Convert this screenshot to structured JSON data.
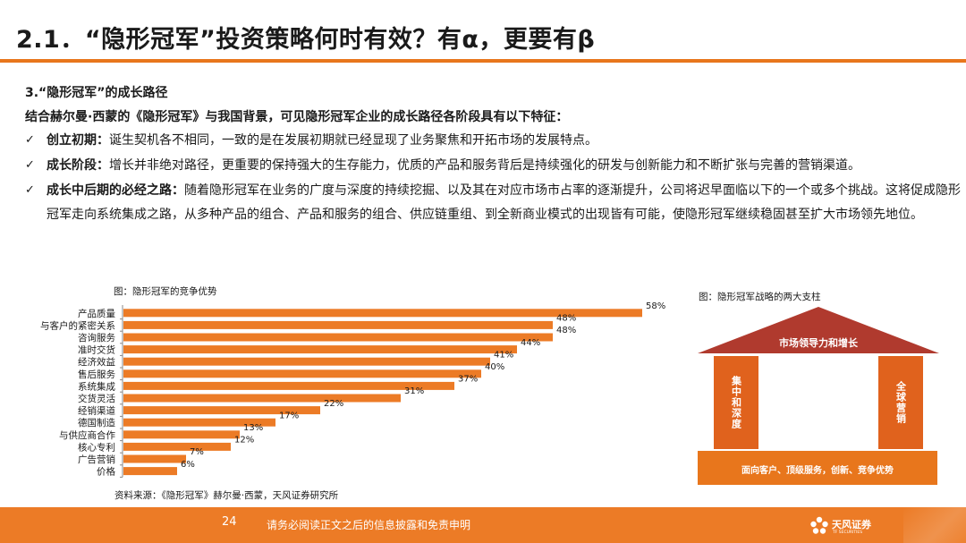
{
  "slide": {
    "title": "2.1．“隐形冠军”投资策略何时有效？有α，更要有β"
  },
  "content": {
    "section_heading": "3.“隐形冠军”的成长路径",
    "intro": "结合赫尔曼·西蒙的《隐形冠军》与我国背景，可见隐形冠军企业的成长路径各阶段具有以下特征：",
    "check_glyph": "✓",
    "bullets": [
      {
        "head": "创立初期：",
        "text": "诞生契机各不相同，一致的是在发展初期就已经显现了业务聚焦和开拓市场的发展特点。"
      },
      {
        "head": "成长阶段：",
        "text": "增长并非绝对路径，更重要的保持强大的生存能力，优质的产品和服务背后是持续强化的研发与创新能力和不断扩张与完善的营销渠道。"
      },
      {
        "head": "成长中后期的必经之路：",
        "text": "随着隐形冠军在业务的广度与深度的持续挖掘、以及其在对应市场市占率的逐渐提升，公司将迟早面临以下的一个或多个挑战。这将促成隐形冠军走向系统集成之路，从多种产品的组合、产品和服务的组合、供应链重组、到全新商业模式的出现皆有可能，使隐形冠军继续稳固甚至扩大市场领先地位。"
      }
    ]
  },
  "chart_caption": "图：隐形冠军的竞争优势",
  "chart_source": "资料来源：《隐形冠军》赫尔曼·西蒙，天风证券研究所",
  "chart_data": {
    "type": "bar",
    "orientation": "horizontal",
    "categories": [
      "产品质量",
      "与客户的紧密关系",
      "咨询服务",
      "准时交货",
      "经济效益",
      "售后服务",
      "系统集成",
      "交货灵活",
      "经销渠道",
      "德国制造",
      "与供应商合作",
      "核心专利",
      "广告营销",
      "价格"
    ],
    "values": [
      58,
      48,
      48,
      44,
      41,
      40,
      37,
      31,
      22,
      17,
      13,
      12,
      7,
      6
    ],
    "value_labels": [
      "58%",
      "48%",
      "48%",
      "44%",
      "41%",
      "40%",
      "37%",
      "31%",
      "22%",
      "17%",
      "13%",
      "12%",
      "7%",
      "6%"
    ],
    "unit": "%",
    "xlim": [
      0,
      60
    ],
    "bar_color": "#ec7b26",
    "grid": false,
    "legend": "none"
  },
  "diagram": {
    "caption": "图：隐形冠军战略的两大支柱",
    "roof_label": "市场领导力和增长",
    "left_pillar": "集中和深度",
    "right_pillar": "全球营销",
    "base_label": "面向客户、顶级服务，创新、竞争优势",
    "colors": {
      "roof": "#b03a2e",
      "pillar": "#e0621d",
      "base": "#e8761c"
    }
  },
  "footer": {
    "page_number": "24",
    "disclaimer": "请务必阅读正文之后的信息披露和免责申明",
    "logo_text": "天风证券",
    "logo_sub": "TF SECURITIES",
    "bar_color": "#ec7b26"
  },
  "colors": {
    "accent": "#e8761c",
    "title_rule": "#e8761c"
  }
}
